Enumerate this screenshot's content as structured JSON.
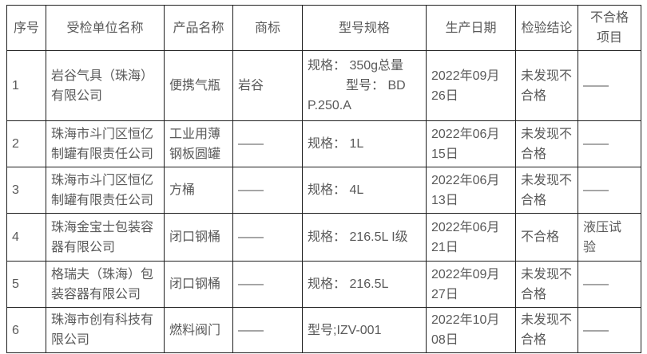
{
  "colors": {
    "background": "#ffffff",
    "border": "#1f1f1f",
    "text": "#595959"
  },
  "table": {
    "headers": {
      "no": "序号",
      "unit": "受检单位名称",
      "product": "产品名称",
      "brand": "商标",
      "spec": "型号规格",
      "date": "生产日期",
      "result": "检验结论",
      "defect": "不合格\n项目"
    },
    "rows": [
      {
        "no": "1",
        "unit": "岩谷气具（珠海）\n有限公司",
        "product": "便携气瓶",
        "brand": "岩谷",
        "spec": "规格： 350g总量\n　　　型号： BD\nP.250.A",
        "date": "2022年09月\n26日",
        "result": "未发现不\n合格",
        "defect": "——"
      },
      {
        "no": "2",
        "unit": "珠海市斗门区恒亿\n制罐有限责任公司",
        "product": "工业用薄\n钢板圆罐",
        "brand": "——",
        "spec": "规格： 1L",
        "date": "2022年06月\n15日",
        "result": "未发现不\n合格",
        "defect": "——"
      },
      {
        "no": "3",
        "unit": "珠海市斗门区恒亿\n制罐有限责任公司",
        "product": "方桶",
        "brand": "——",
        "spec": "规格： 4L",
        "date": "2022年06月\n13日",
        "result": "未发现不\n合格",
        "defect": "——"
      },
      {
        "no": "4",
        "unit": "珠海金宝士包装容\n器有限公司",
        "product": "闭口钢桶",
        "brand": "——",
        "spec": "规格： 216.5L I级",
        "date": "2022年06月\n21日",
        "result": "不合格",
        "defect": "液压试\n验"
      },
      {
        "no": "5",
        "unit": "格瑞夫（珠海）包\n装容器有限公司",
        "product": "闭口钢桶",
        "brand": "——",
        "spec": "规格： 216.5L",
        "date": "2022年09月\n27日",
        "result": "未发现不\n合格",
        "defect": "——"
      },
      {
        "no": "6",
        "unit": "珠海市创有科技有\n限公司",
        "product": "燃料阀门",
        "brand": "——",
        "spec": "型号;IZV-001",
        "date": "2022年10月\n08日",
        "result": "未发现不\n合格",
        "defect": "——"
      }
    ]
  }
}
